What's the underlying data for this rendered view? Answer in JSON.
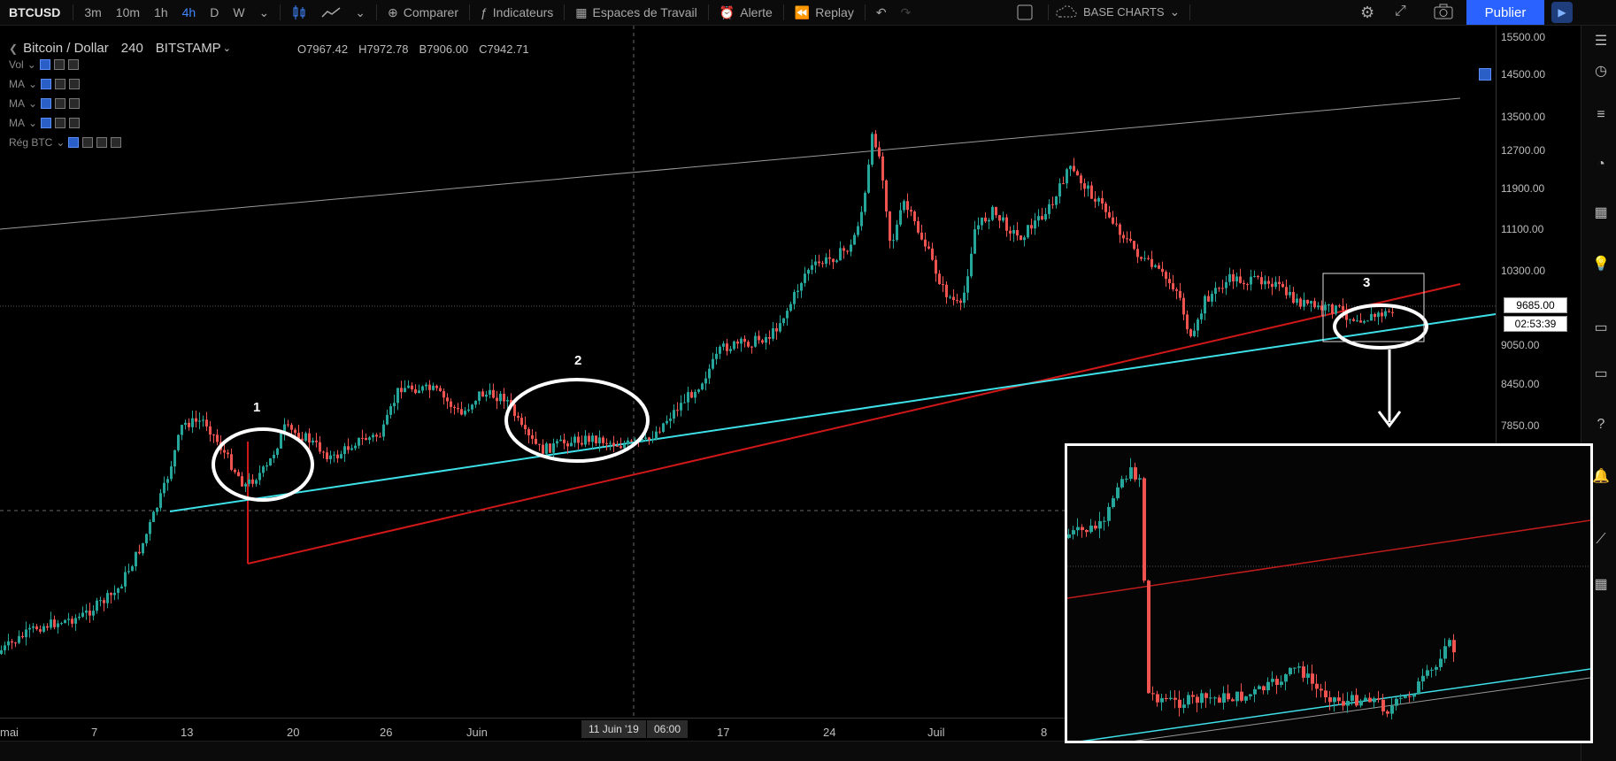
{
  "toolbar": {
    "symbol": "BTCUSD",
    "intervals": [
      "3m",
      "10m",
      "1h",
      "4h",
      "D",
      "W"
    ],
    "active_interval": "4h",
    "compare_label": "Comparer",
    "indicators_label": "Indicateurs",
    "workspaces_label": "Espaces de Travail",
    "alert_label": "Alerte",
    "replay_label": "Replay",
    "layout_label": "BASE CHARTS",
    "publish_label": "Publier"
  },
  "legend": {
    "title": "Bitcoin / Dollar",
    "interval": "240",
    "exchange": "BITSTAMP",
    "open": "O7967.42",
    "high": "H7972.78",
    "low": "B7906.00",
    "close": "C7942.71"
  },
  "indicators": [
    {
      "name": "Vol"
    },
    {
      "name": "MA"
    },
    {
      "name": "MA"
    },
    {
      "name": "MA"
    },
    {
      "name": "Rég BTC"
    }
  ],
  "price_axis": [
    "15500.00",
    "14500.00",
    "13500.00",
    "12700.00",
    "11900.00",
    "11100.00",
    "10300.00",
    "9050.00",
    "8450.00",
    "7850.00"
  ],
  "current_price": "9685.00",
  "countdown": "02:53:39",
  "time_axis": [
    {
      "label": "mai"
    },
    {
      "label": "7"
    },
    {
      "label": "13"
    },
    {
      "label": "20"
    },
    {
      "label": "26"
    },
    {
      "label": "Juin"
    },
    {
      "label": "17"
    },
    {
      "label": "24"
    },
    {
      "label": "Juil"
    },
    {
      "label": "8"
    }
  ],
  "crosshair_date": "11 Juin '19",
  "crosshair_time": "06:00",
  "annotations": [
    "1",
    "2",
    "3"
  ],
  "colors": {
    "up": "#26a69a",
    "down": "#ef5350",
    "channel_red": "#d01818",
    "support_cyan": "#3ee0e8",
    "publish": "#2962ff"
  }
}
